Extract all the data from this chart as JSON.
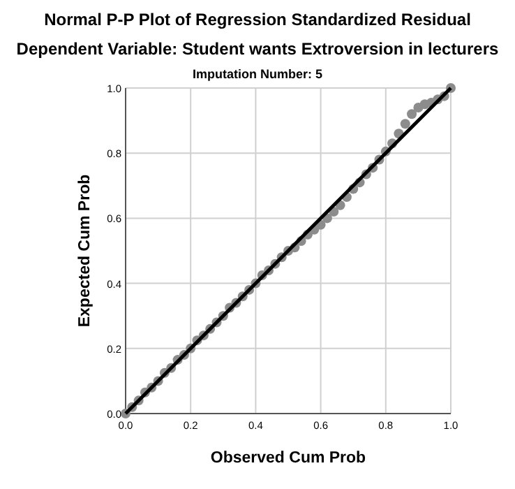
{
  "chart_data": {
    "type": "scatter",
    "title": "Normal P-P Plot of Regression Standardized Residual",
    "subtitle": "Dependent Variable: Student wants Extroversion in lecturers",
    "annotations": [
      "Imputation Number: 5"
    ],
    "xlabel": "Observed Cum Prob",
    "ylabel": "Expected Cum Prob",
    "xlim": [
      0,
      1
    ],
    "ylim": [
      0,
      1
    ],
    "xticks": [
      {
        "value": 0,
        "label": "0.0"
      },
      {
        "value": 0.2,
        "label": "0.2"
      },
      {
        "value": 0.4,
        "label": "0.4"
      },
      {
        "value": 0.6,
        "label": "0.6"
      },
      {
        "value": 0.8,
        "label": "0.8"
      },
      {
        "value": 1,
        "label": "1.0"
      }
    ],
    "yticks": [
      {
        "value": 0,
        "label": "0.0"
      },
      {
        "value": 0.2,
        "label": "0.2"
      },
      {
        "value": 0.4,
        "label": "0.4"
      },
      {
        "value": 0.6,
        "label": "0.6"
      },
      {
        "value": 0.8,
        "label": "0.8"
      },
      {
        "value": 1,
        "label": "1.0"
      }
    ],
    "grid": true,
    "marker": "circle",
    "series": [
      {
        "color": "#8c8c8c",
        "x": [
          0.0,
          0.02,
          0.04,
          0.06,
          0.08,
          0.1,
          0.12,
          0.14,
          0.16,
          0.18,
          0.2,
          0.22,
          0.24,
          0.26,
          0.28,
          0.3,
          0.32,
          0.34,
          0.36,
          0.38,
          0.4,
          0.42,
          0.44,
          0.46,
          0.48,
          0.5,
          0.52,
          0.54,
          0.56,
          0.58,
          0.6,
          0.62,
          0.64,
          0.66,
          0.68,
          0.7,
          0.72,
          0.74,
          0.76,
          0.78,
          0.8,
          0.82,
          0.84,
          0.86,
          0.88,
          0.9,
          0.92,
          0.94,
          0.96,
          0.98,
          1.0
        ],
        "values": [
          0.0,
          0.02,
          0.04,
          0.065,
          0.08,
          0.1,
          0.125,
          0.14,
          0.165,
          0.18,
          0.2,
          0.225,
          0.24,
          0.26,
          0.28,
          0.3,
          0.325,
          0.34,
          0.36,
          0.38,
          0.4,
          0.425,
          0.44,
          0.46,
          0.48,
          0.5,
          0.51,
          0.53,
          0.55,
          0.565,
          0.58,
          0.6,
          0.62,
          0.64,
          0.665,
          0.69,
          0.71,
          0.735,
          0.755,
          0.78,
          0.805,
          0.83,
          0.86,
          0.89,
          0.92,
          0.94,
          0.95,
          0.955,
          0.965,
          0.975,
          1.0
        ]
      },
      {
        "type": "line",
        "color": "#000000",
        "marker": "none",
        "x": [
          0,
          1
        ],
        "values": [
          0,
          1
        ]
      }
    ]
  }
}
